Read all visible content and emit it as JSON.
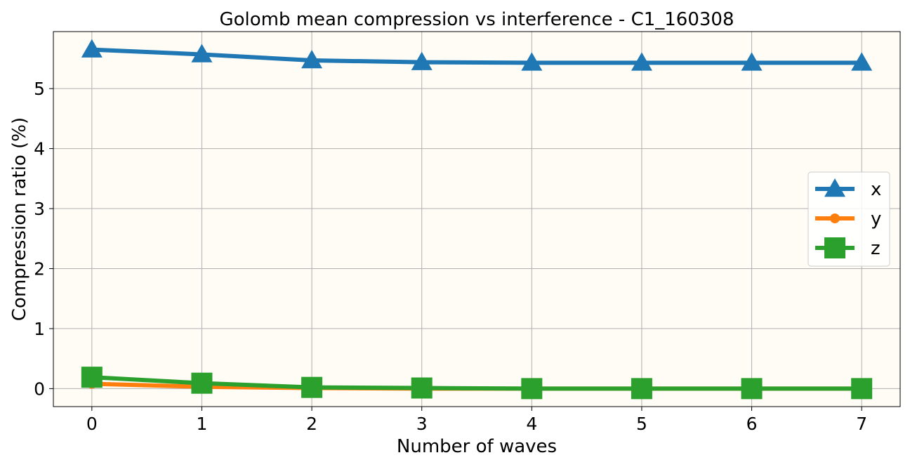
{
  "chart_data": {
    "type": "line",
    "title": "Golomb mean compression vs interference - C1_160308",
    "xlabel": "Number of waves",
    "ylabel": "Compression ratio (%)",
    "x": [
      0,
      1,
      2,
      3,
      4,
      5,
      6,
      7
    ],
    "xticks": [
      "0",
      "1",
      "2",
      "3",
      "4",
      "5",
      "6",
      "7"
    ],
    "yticks": [
      "0",
      "1",
      "2",
      "3",
      "4",
      "5"
    ],
    "xlim": [
      -0.35,
      7.35
    ],
    "ylim": [
      -0.3,
      5.95
    ],
    "grid": true,
    "legend_position": "center-right",
    "plot_background": "#fffbf5",
    "series": [
      {
        "name": "x",
        "color": "#1f77b4",
        "marker": "triangle",
        "values": [
          5.65,
          5.57,
          5.47,
          5.44,
          5.43,
          5.43,
          5.43,
          5.43
        ]
      },
      {
        "name": "y",
        "color": "#ff7f0e",
        "marker": "circle",
        "values": [
          0.08,
          0.03,
          0.01,
          0.0,
          0.0,
          0.0,
          0.0,
          0.0
        ]
      },
      {
        "name": "z",
        "color": "#2ca02c",
        "marker": "square",
        "values": [
          0.19,
          0.09,
          0.02,
          0.01,
          0.0,
          0.0,
          0.0,
          0.0
        ]
      }
    ]
  }
}
